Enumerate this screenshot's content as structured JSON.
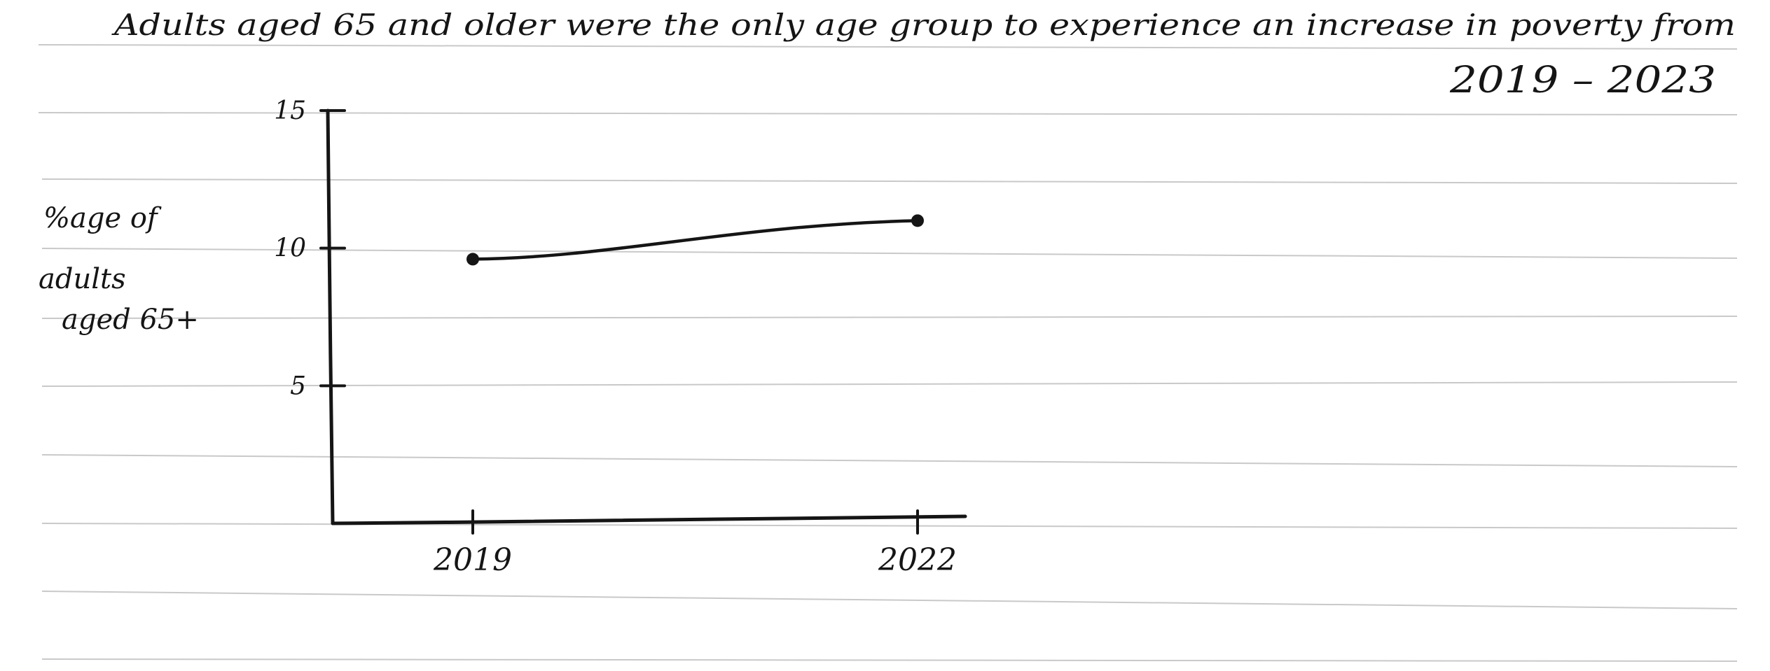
{
  "chart_data": {
    "type": "line",
    "title": "Adults aged 65 and older were the only age group to experience an increase in poverty from",
    "subtitle": "2019 – 2023",
    "xlabel": "",
    "ylabel": [
      "%age of",
      "adults",
      "aged 65+"
    ],
    "categories": [
      "2019",
      "2022"
    ],
    "series": [
      {
        "values": [
          9.6,
          11.0
        ]
      }
    ],
    "ylim": [
      0,
      15
    ],
    "yticks": [
      5,
      10,
      15
    ],
    "ytick_labels": [
      "5",
      "10",
      "15"
    ],
    "grid": false,
    "legend": "none",
    "colors": {
      "ink": "#151515",
      "paper": "#ffffff",
      "ruled_lines": "#c9c9c9"
    }
  }
}
